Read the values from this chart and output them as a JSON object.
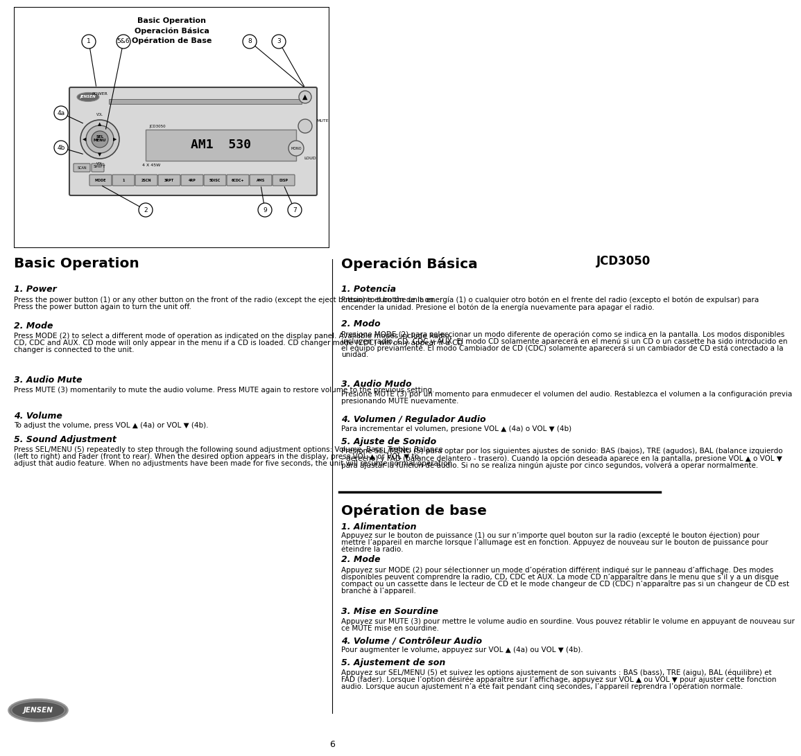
{
  "page_number": "6",
  "model": "JCD3050",
  "bg_color": "#ffffff",
  "left_col_title": "Basic Operation",
  "right_col_title": "Operación Básica",
  "french_col_title": "Opération de base",
  "left_sections": [
    {
      "heading": "1. Power",
      "body": "Press the power button (1) or any other button on the front of the radio (except the eject button) to turn the unit on. Press the power button again to turn the unit off."
    },
    {
      "heading": "2. Mode",
      "body": "Press MODE (2) to select a different mode of operation as indicated on the display panel. Available modes include Radio, CD, CDC and AUX. CD mode will only appear in the menu if a CD is loaded. CD changer mode (CDC) will only appear if a CD changer is connected to the unit."
    },
    {
      "heading": "3. Audio Mute",
      "body": "Press MUTE (3) momentarily to mute the audio volume. Press MUTE again to restore volume to the previous setting."
    },
    {
      "heading": "4. Volume",
      "body": "To adjust the volume, press VOL ▲ (4a) or VOL ▼ (4b)."
    },
    {
      "heading": "5. Sound Adjustment",
      "body": "Press SEL/MENU (5) repeatedly to step through the following sound adjustment options: Volume, Bass, Treble, Balance (left to right) and Fader (front to rear). When the desired option appears in the display, press VOL ▲ or VOL ▼ to adjust that audio feature. When no adjustments have been made for five seconds, the unit will resume normal operation."
    }
  ],
  "right_sections": [
    {
      "heading": "1. Potencia",
      "body": "Presione el botón de la energía (1) o cualquier otro botón en el frente del radio (excepto el botón de expulsar) para encender la unidad. Presione el botón de la energía nuevamente para apagar el radio."
    },
    {
      "heading": "2. Modo",
      "body": "Presione MODE (2) para seleccionar un modo diferente de operación como se indica en la pantalla. Los modos disponibles incluyen radio, CD, CDC y AUX. El modo CD solamente aparecerá en el menú si un CD o un cassette ha sido introducido en el equipo previamente. El modo Cambiador de CD (CDC) solamente aparecerá si un cambiador de CD está conectado a la unidad."
    },
    {
      "heading": "3. Audio Mudo",
      "body": "Presione MUTE (3) por un momento para enmudecer el volumen del audio. Restablezca el volumen a la configuración previa presionando MUTE nuevamente."
    },
    {
      "heading": "4. Volumen / Regulador Audio",
      "body": "Para incrementar el volumen, presione VOL ▲ (4a) o VOL ▼ (4b)"
    },
    {
      "heading": "5. Ajuste de Sonido",
      "body": "Presione SEL/MENU (5) para optar por los siguientes ajustes de sonido: BAS (bajos), TRE (agudos), BAL (balance izquierdo - derecho) y FAD (balance delantero - trasero). Cuando la opción deseada aparece en la pantalla, presione VOL ▲ o VOL ▼ para ajustar la función de audio. Si no se realiza ningún ajuste por cinco segundos, volverá a operar normalmente."
    }
  ],
  "french_sections": [
    {
      "heading": "1. Alimentation",
      "body": "Appuyez sur le bouton de puissance (1) ou sur n’importe quel bouton sur la radio (excepté le bouton éjection) pour mettre l’appareil en marche lorsque l’allumage est en fonction. Appuyez de nouveau sur le bouton de puissance pour éteindre la radio."
    },
    {
      "heading": "2. Mode",
      "body": "Appuyez sur MODE (2) pour sélectionner un mode d’opération différent indiqué sur le panneau d’affichage. Des modes disponibles peuvent comprendre la radio, CD, CDC et AUX. La mode CD n’apparaître dans le menu que s’il y a un disque compact ou un cassette dans le lecteur de CD et le mode changeur de CD (CDC) n’apparaître pas si un changeur de CD est branché à l’appareil."
    },
    {
      "heading": "3. Mise en Sourdine",
      "body": "Appuyez sur MUTE (3) pour mettre le volume audio en sourdine. Vous pouvez rétablir le volume en appuyant de nouveau sur ce MUTE mise en sourdine."
    },
    {
      "heading": "4. Volume / Contrôleur Audio",
      "body": "Pour augmenter le volume, appuyez sur VOL ▲ (4a) ou VOL ▼ (4b)."
    },
    {
      "heading": "5. Ajustement de son",
      "body": "Appuyez sur SEL/MENU (5) et suivez les options ajustement de son suivants : BAS (bass), TRE (aigu), BAL (équilibre) et FAD (fader). Lorsque l’option désirée apparaître sur l’affichage, appuyez sur VOL ▲ ou VOL ▼ pour ajuster cette fonction audio. Lorsque aucun ajustement n’a été fait pendant cinq secondes, l’appareil reprendra l’opération normale."
    }
  ],
  "diagram_title_lines": [
    "Basic Operation",
    "Operación Básica",
    "Opération de Base"
  ]
}
